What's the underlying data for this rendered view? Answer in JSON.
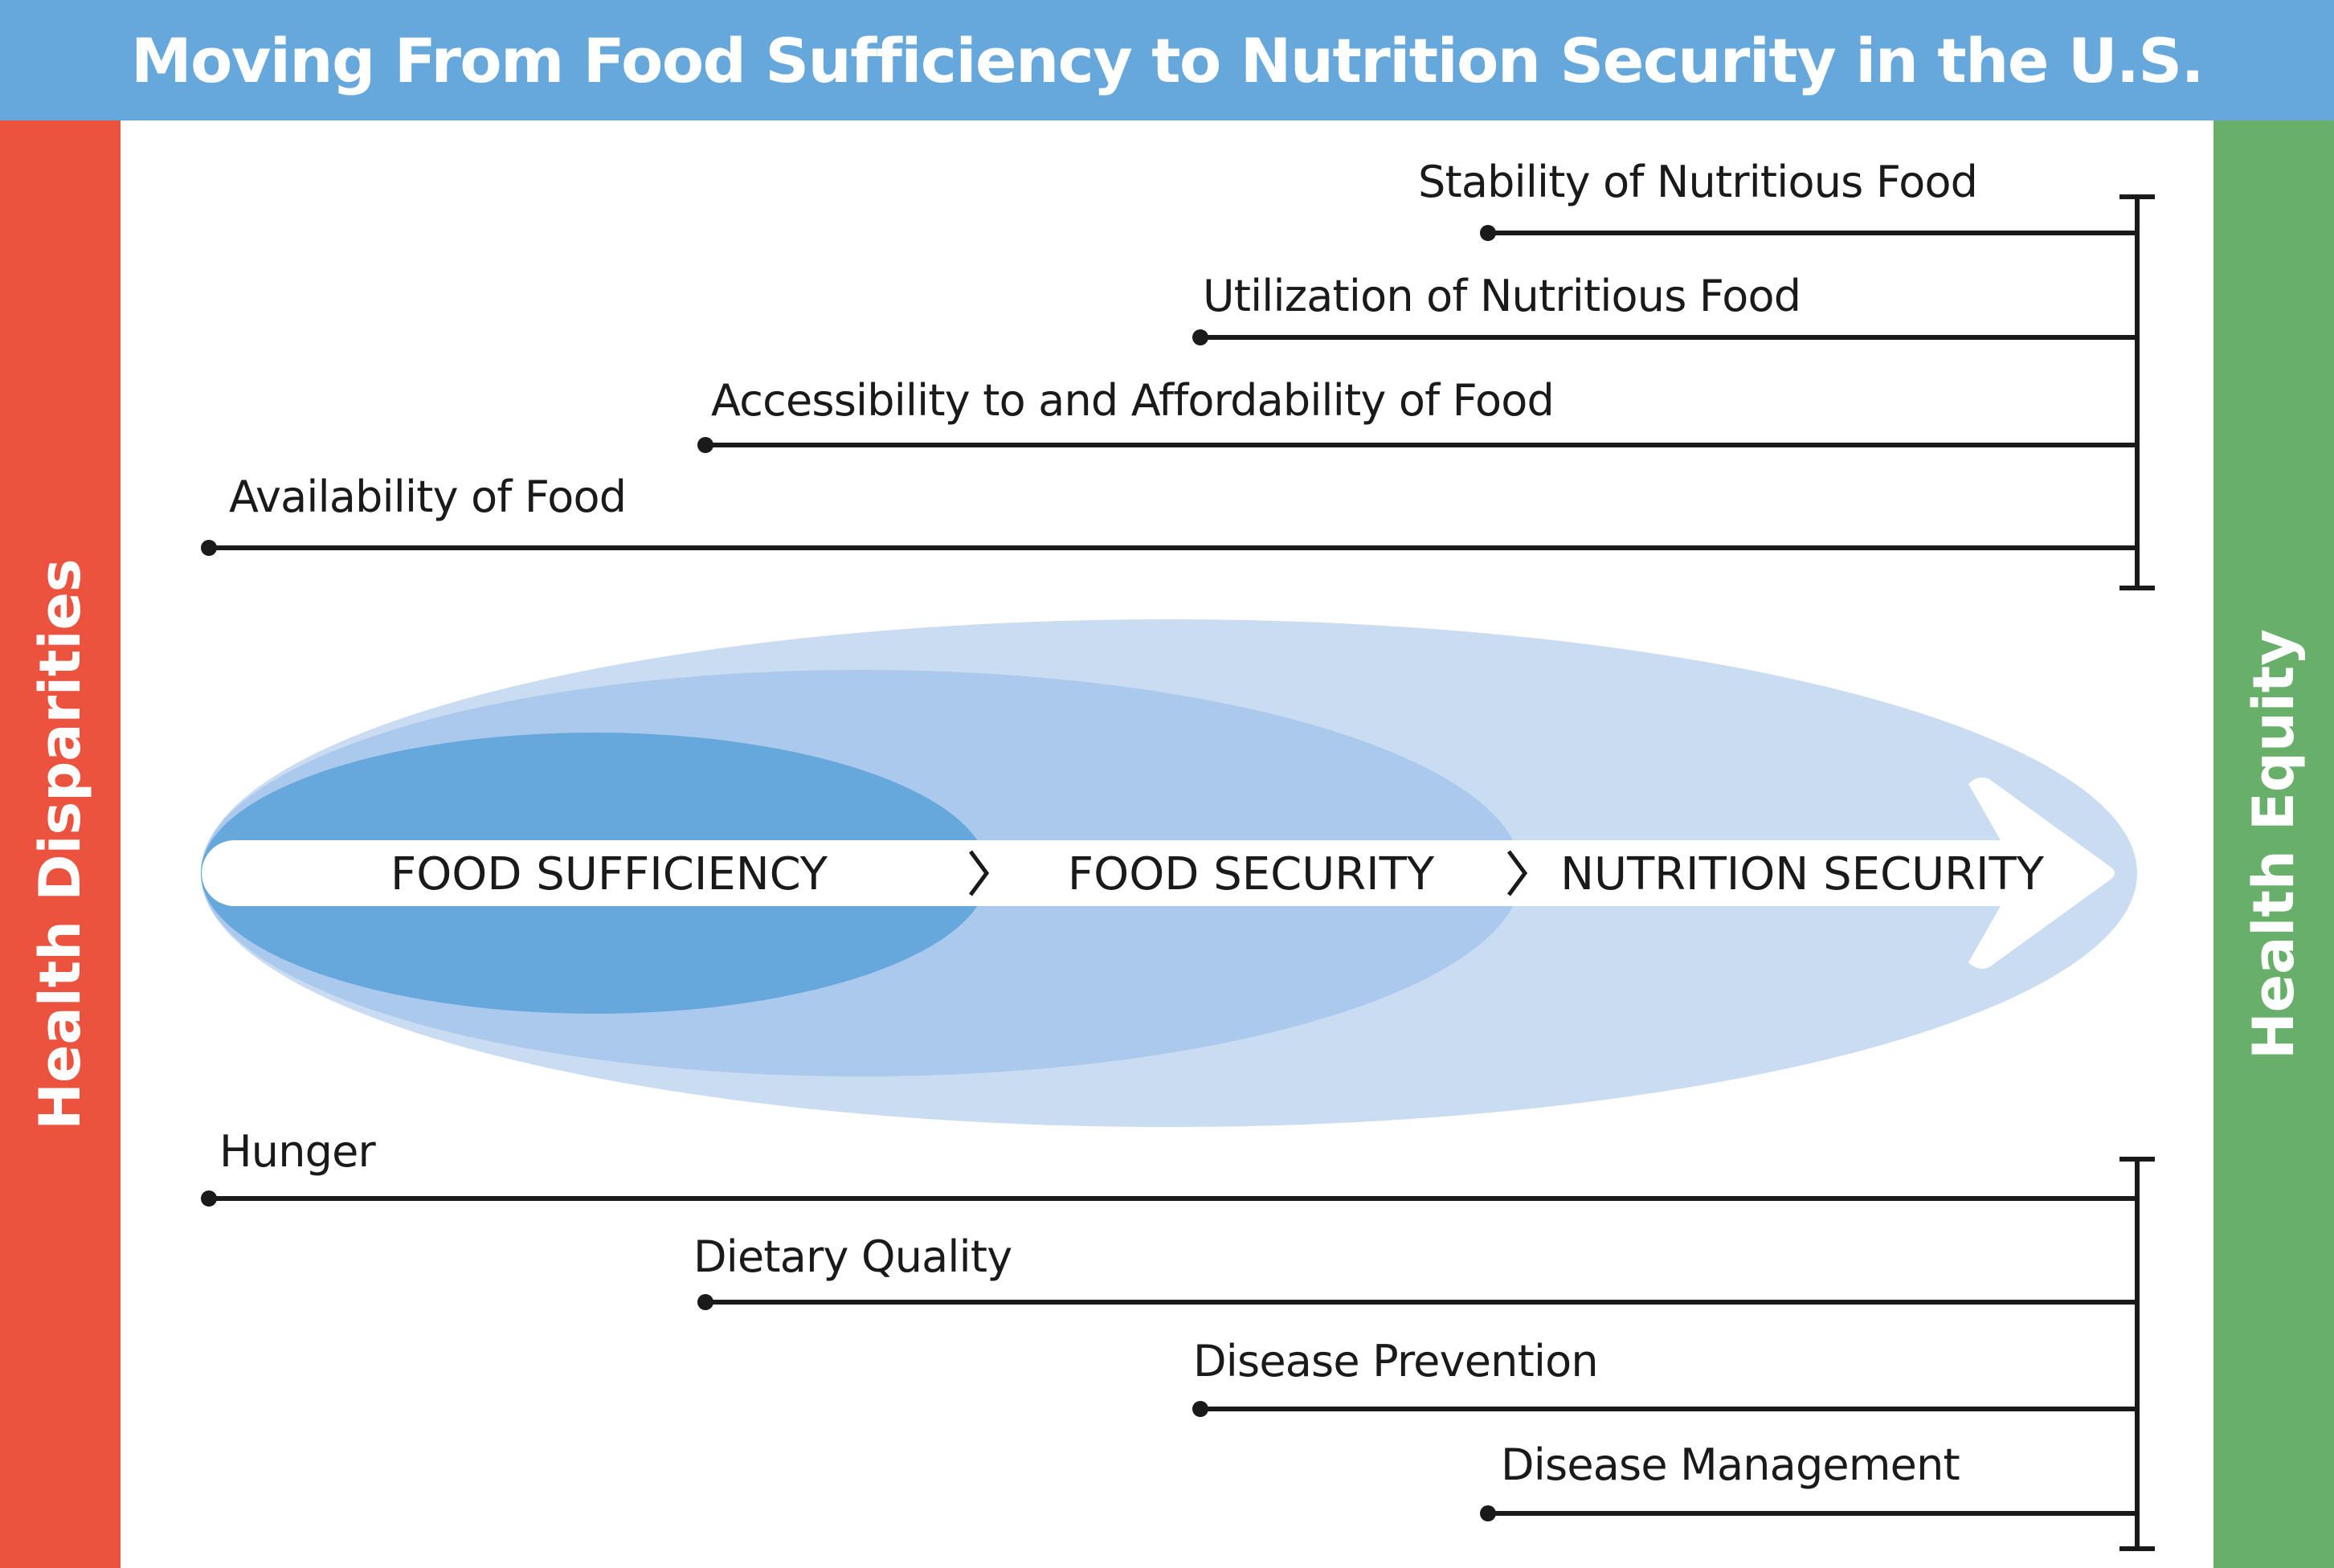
{
  "header": {
    "title": "Moving From Food Sufficiency to Nutrition Security in the U.S."
  },
  "left_bar": {
    "label": "Health Disparities",
    "color": "#ec533f"
  },
  "right_bar": {
    "label": "Health Equity",
    "color": "#68b06a"
  },
  "top_dimensions": [
    "Stability of Nutritious Food",
    "Utilization of Nutritious Food",
    "Accessibility to and Affordability of Food",
    "Availability of Food"
  ],
  "stages": [
    "FOOD SUFFICIENCY",
    "FOOD SECURITY",
    "NUTRITION SECURITY"
  ],
  "bottom_outcomes": [
    "Hunger",
    "Dietary Quality",
    "Disease Prevention",
    "Disease Management"
  ],
  "colors": {
    "header": "#66a8dc",
    "ellipse_outer": "#c9dcf1",
    "ellipse_middle": "#aac9ec",
    "ellipse_inner": "#66a8dc",
    "line": "#1a1a1a"
  }
}
